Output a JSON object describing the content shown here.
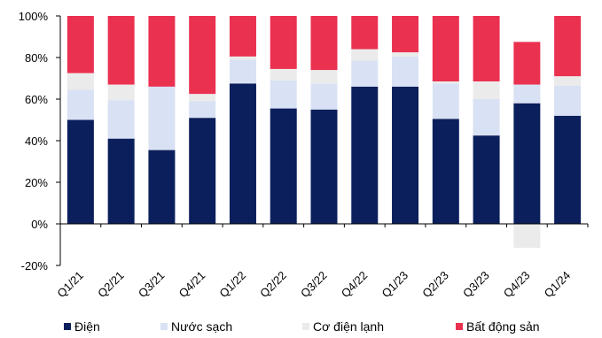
{
  "chart_data": {
    "type": "bar",
    "stacked": true,
    "title": "",
    "xlabel": "",
    "ylabel": "",
    "ylim": [
      -0.2,
      1.0
    ],
    "yticks": [
      -0.2,
      0,
      0.2,
      0.4,
      0.6,
      0.8,
      1.0
    ],
    "ytick_labels": [
      "-20%",
      "0%",
      "20%",
      "40%",
      "60%",
      "80%",
      "100%"
    ],
    "grid": false,
    "legend_position": "bottom",
    "categories": [
      "Q1/21",
      "Q2/21",
      "Q3/21",
      "Q4/21",
      "Q1/22",
      "Q2/22",
      "Q3/22",
      "Q4/22",
      "Q1/23",
      "Q2/23",
      "Q3/23",
      "Q4/23",
      "Q1/24"
    ],
    "series": [
      {
        "name": "Điện",
        "color": "#0b1f5c",
        "values": [
          0.5,
          0.41,
          0.355,
          0.51,
          0.675,
          0.555,
          0.55,
          0.66,
          0.66,
          0.505,
          0.425,
          0.58,
          0.52
        ]
      },
      {
        "name": "Nước sạch",
        "color": "#d9e1f4",
        "values": [
          0.145,
          0.185,
          0.305,
          0.08,
          0.115,
          0.135,
          0.125,
          0.125,
          0.145,
          0.17,
          0.175,
          0.09,
          0.145
        ]
      },
      {
        "name": "Cơ điện lạnh",
        "color": "#ebebeb",
        "values": [
          0.08,
          0.075,
          0.0,
          0.035,
          0.015,
          0.055,
          0.065,
          0.055,
          0.02,
          0.01,
          0.085,
          -0.115,
          0.045
        ]
      },
      {
        "name": "Bất động sản",
        "color": "#ea3150",
        "values": [
          0.275,
          0.33,
          0.34,
          0.375,
          0.195,
          0.255,
          0.26,
          0.16,
          0.175,
          0.315,
          0.315,
          0.205,
          0.29
        ]
      }
    ]
  }
}
